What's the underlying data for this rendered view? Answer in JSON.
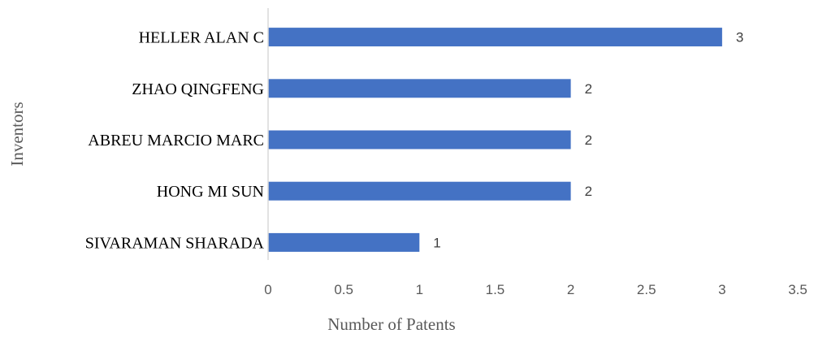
{
  "chart_data": {
    "type": "bar",
    "orientation": "horizontal",
    "categories": [
      "HELLER ALAN C",
      "ZHAO QINGFENG",
      "ABREU MARCIO MARC",
      "HONG MI SUN",
      "SIVARAMAN SHARADA"
    ],
    "values": [
      3,
      2,
      2,
      2,
      1
    ],
    "xlabel": "Number of Patents",
    "ylabel": "Inventors",
    "xlim": [
      0,
      3.5
    ],
    "x_ticks": [
      "0",
      "0.5",
      "1",
      "1.5",
      "2",
      "2.5",
      "3",
      "3.5"
    ],
    "data_labels": [
      "3",
      "2",
      "2",
      "2",
      "1"
    ],
    "bar_color": "#4472C4",
    "axis_color": "#D9D9D9",
    "grid": false,
    "legend": "none"
  }
}
